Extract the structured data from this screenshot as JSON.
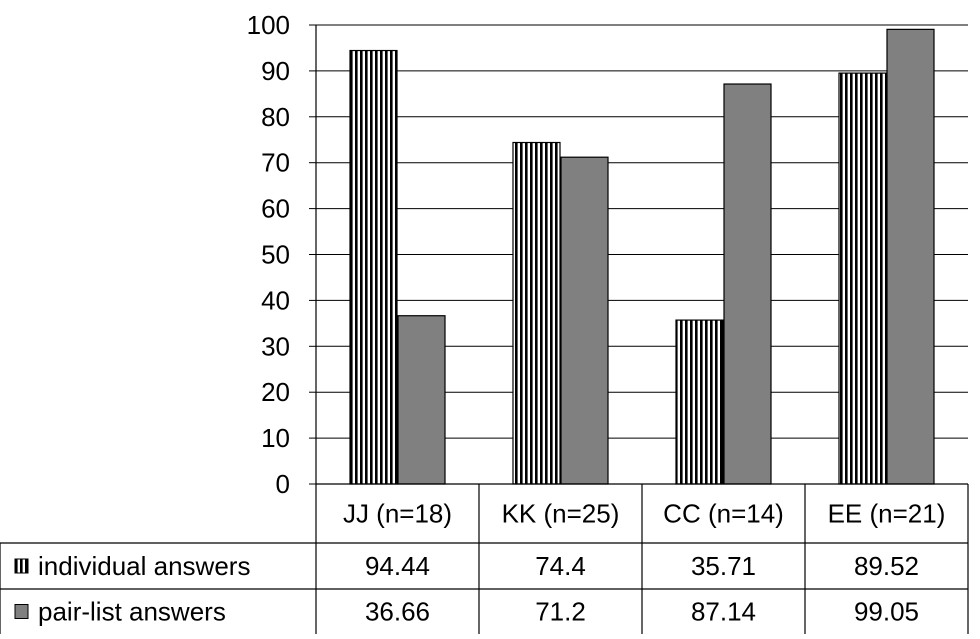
{
  "chart_data": {
    "type": "bar",
    "categories": [
      "JJ (n=18)",
      "KK (n=25)",
      "CC (n=14)",
      "EE (n=21)"
    ],
    "series": [
      {
        "name": "individual answers",
        "values": [
          94.44,
          74.4,
          35.71,
          89.52
        ],
        "value_labels": [
          "94.44",
          "74.4",
          "35.71",
          "89.52"
        ],
        "fill": "vertical-stripes",
        "color": "#000000"
      },
      {
        "name": "pair-list answers",
        "values": [
          36.66,
          71.2,
          87.14,
          99.05
        ],
        "value_labels": [
          "36.66",
          "71.2",
          "87.14",
          "99.05"
        ],
        "fill": "solid",
        "color": "#808080"
      }
    ],
    "yticks": [
      "0",
      "10",
      "20",
      "30",
      "40",
      "50",
      "60",
      "70",
      "80",
      "90",
      "100"
    ],
    "ylim": [
      0,
      100
    ],
    "grid": true,
    "legend": "data-table"
  }
}
